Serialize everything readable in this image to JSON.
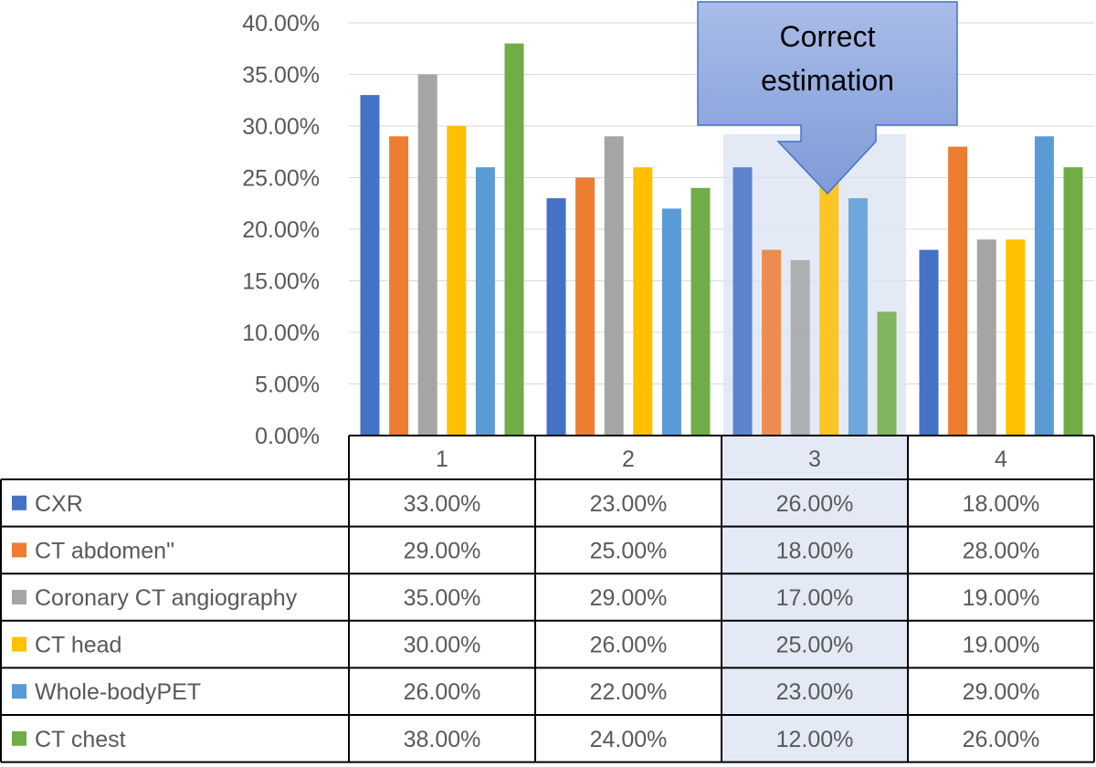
{
  "chart_data": {
    "type": "bar",
    "categories": [
      "1",
      "2",
      "3",
      "4"
    ],
    "ylim": [
      0,
      40
    ],
    "y_ticks": [
      0,
      5,
      10,
      15,
      20,
      25,
      30,
      35,
      40
    ],
    "y_tick_labels": [
      "0.00%",
      "5.00%",
      "10.00%",
      "15.00%",
      "20.00%",
      "25.00%",
      "30.00%",
      "35.00%",
      "40.00%"
    ],
    "grid": true,
    "legend_placement": "table rows below chart",
    "highlighted_category": "3",
    "series": [
      {
        "name": "CXR",
        "values": [
          33,
          23,
          26,
          18
        ],
        "labels": [
          "33.00%",
          "23.00%",
          "26.00%",
          "18.00%"
        ],
        "color": "#4472C4"
      },
      {
        "name": " CT abdomen\"",
        "values": [
          29,
          25,
          18,
          28
        ],
        "labels": [
          "29.00%",
          "25.00%",
          "18.00%",
          "28.00%"
        ],
        "color": "#ED7D31"
      },
      {
        "name": "Coronary CT angiography",
        "values": [
          35,
          29,
          17,
          19
        ],
        "labels": [
          "35.00%",
          "29.00%",
          "17.00%",
          "19.00%"
        ],
        "color": "#A5A5A5"
      },
      {
        "name": "CT head",
        "values": [
          30,
          26,
          25,
          19
        ],
        "labels": [
          "30.00%",
          "26.00%",
          "25.00%",
          "19.00%"
        ],
        "color": "#FFC000"
      },
      {
        "name": "Whole-bodyPET",
        "values": [
          26,
          22,
          23,
          29
        ],
        "labels": [
          "26.00%",
          "22.00%",
          "23.00%",
          "29.00%"
        ],
        "color": "#5B9BD5"
      },
      {
        "name": "CT chest",
        "values": [
          38,
          24,
          12,
          26
        ],
        "labels": [
          "38.00%",
          "24.00%",
          "12.00%",
          "26.00%"
        ],
        "color": "#70AD47"
      }
    ],
    "annotation": {
      "line1": "Correct",
      "line2": "estimation",
      "target_category": "3"
    }
  }
}
